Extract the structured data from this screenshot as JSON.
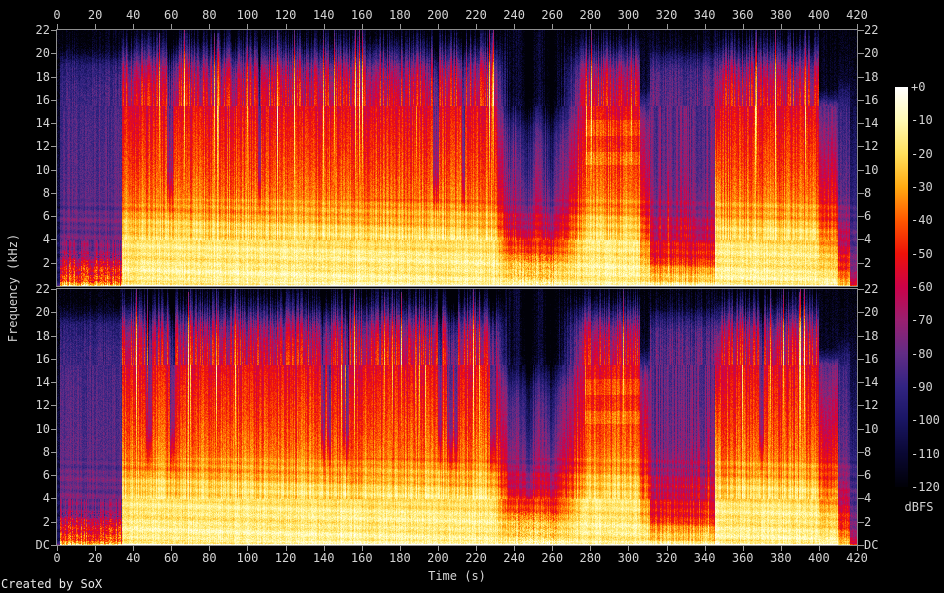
{
  "credit": "Created by SoX",
  "colors": {
    "background": "#000000",
    "axis": "#9a9a9a",
    "text": "#d4d4d4"
  },
  "axes": {
    "time": {
      "label": "Time (s)",
      "tick_labels": [
        "0",
        "20",
        "40",
        "60",
        "80",
        "100",
        "120",
        "140",
        "160",
        "180",
        "200",
        "220",
        "240",
        "260",
        "280",
        "300",
        "320",
        "340",
        "360",
        "380",
        "400",
        "420"
      ]
    },
    "frequency": {
      "label": "Frequency (kHz)",
      "tick_labels": [
        "22",
        "20",
        "18",
        "16",
        "14",
        "12",
        "10",
        "8",
        "6",
        "4",
        "2"
      ],
      "dc": "DC"
    },
    "colorbar": {
      "unit": "dBFS",
      "tick_labels": [
        "+0",
        "-10",
        "-20",
        "-30",
        "-40",
        "-50",
        "-60",
        "-70",
        "-80",
        "-90",
        "-100",
        "-110",
        "-120"
      ]
    }
  },
  "chart_data": {
    "type": "heatmap",
    "subtype": "audio-spectrogram",
    "generator": "SoX",
    "channels": [
      "channel-1-top",
      "channel-2-bottom"
    ],
    "x_axis": {
      "label": "Time (s)",
      "range_s": [
        0,
        420
      ],
      "tick_step_s": 20
    },
    "y_axis": {
      "label": "Frequency (kHz)",
      "range_khz": [
        0,
        22
      ],
      "tick_step_khz": 2,
      "dc_at_bottom": true
    },
    "z_axis": {
      "label": "dBFS",
      "range_db": [
        -120,
        0
      ],
      "tick_step_db": 10,
      "colorbar_position": "right"
    },
    "palette_stops": [
      {
        "db": -120,
        "rgb": [
          1,
          1,
          8
        ]
      },
      {
        "db": -110,
        "rgb": [
          10,
          8,
          52
        ]
      },
      {
        "db": -100,
        "rgb": [
          26,
          22,
          100
        ]
      },
      {
        "db": -90,
        "rgb": [
          50,
          36,
          130
        ]
      },
      {
        "db": -80,
        "rgb": [
          98,
          44,
          134
        ]
      },
      {
        "db": -70,
        "rgb": [
          154,
          32,
          112
        ]
      },
      {
        "db": -60,
        "rgb": [
          204,
          2,
          73
        ]
      },
      {
        "db": -50,
        "rgb": [
          238,
          18,
          10
        ]
      },
      {
        "db": -40,
        "rgb": [
          255,
          88,
          0
        ]
      },
      {
        "db": -30,
        "rgb": [
          255,
          170,
          18
        ]
      },
      {
        "db": -20,
        "rgb": [
          255,
          224,
          92
        ]
      },
      {
        "db": -10,
        "rgb": [
          255,
          250,
          180
        ]
      },
      {
        "db": 0,
        "rgb": [
          255,
          255,
          255
        ]
      }
    ],
    "profiles": {
      "silence": [
        [
          0,
          -100
        ],
        [
          22,
          -120
        ]
      ],
      "intro": [
        [
          0,
          -34
        ],
        [
          0.4,
          -38
        ],
        [
          1,
          -46
        ],
        [
          1.8,
          -56
        ],
        [
          2.6,
          -68
        ],
        [
          3.5,
          -76
        ],
        [
          6,
          -80
        ],
        [
          10,
          -83
        ],
        [
          14,
          -85
        ],
        [
          17,
          -88
        ],
        [
          19,
          -94
        ],
        [
          20,
          -110
        ],
        [
          20.8,
          -118
        ],
        [
          22,
          -120
        ]
      ],
      "loud": [
        [
          0,
          -14
        ],
        [
          0.2,
          -20
        ],
        [
          0.6,
          -14
        ],
        [
          1.5,
          -15
        ],
        [
          3,
          -17
        ],
        [
          4.5,
          -20
        ],
        [
          5.5,
          -26
        ],
        [
          6.5,
          -32
        ],
        [
          8,
          -38
        ],
        [
          10,
          -43
        ],
        [
          12,
          -47
        ],
        [
          14,
          -51
        ],
        [
          16,
          -56
        ],
        [
          17.5,
          -62
        ],
        [
          18.8,
          -72
        ],
        [
          19.8,
          -88
        ],
        [
          20.8,
          -105
        ],
        [
          21.6,
          -116
        ],
        [
          22,
          -118
        ]
      ],
      "breakdown": [
        [
          0,
          -16
        ],
        [
          0.8,
          -20
        ],
        [
          1.6,
          -26
        ],
        [
          2.4,
          -34
        ],
        [
          3.2,
          -44
        ],
        [
          4,
          -52
        ],
        [
          5,
          -60
        ],
        [
          6,
          -66
        ],
        [
          7,
          -72
        ],
        [
          8.5,
          -78
        ],
        [
          10,
          -83
        ],
        [
          12,
          -88
        ],
        [
          13.5,
          -95
        ],
        [
          14.5,
          -104
        ],
        [
          15.5,
          -113
        ],
        [
          16.5,
          -118
        ],
        [
          22,
          -120
        ]
      ],
      "break2": [
        [
          0,
          -16
        ],
        [
          1,
          -18
        ],
        [
          2,
          -24
        ],
        [
          3,
          -30
        ],
        [
          4,
          -36
        ],
        [
          5,
          -42
        ],
        [
          6,
          -48
        ],
        [
          8,
          -55
        ],
        [
          10,
          -60
        ],
        [
          12,
          -66
        ],
        [
          14,
          -72
        ],
        [
          15,
          -80
        ],
        [
          16,
          -95
        ],
        [
          17,
          -110
        ],
        [
          22,
          -120
        ]
      ],
      "purple": [
        [
          0,
          -18
        ],
        [
          0.5,
          -22
        ],
        [
          1,
          -28
        ],
        [
          1.6,
          -36
        ],
        [
          2.2,
          -46
        ],
        [
          3,
          -53
        ],
        [
          4,
          -57
        ],
        [
          5.5,
          -63
        ],
        [
          7,
          -70
        ],
        [
          9,
          -75
        ],
        [
          12,
          -78
        ],
        [
          15,
          -80
        ],
        [
          17,
          -82
        ],
        [
          18.5,
          -86
        ],
        [
          19.5,
          -96
        ],
        [
          20.5,
          -112
        ],
        [
          22,
          -120
        ]
      ],
      "burst": [
        [
          0,
          -12
        ],
        [
          2,
          -14
        ],
        [
          4,
          -18
        ],
        [
          6,
          -24
        ],
        [
          8,
          -30
        ],
        [
          10,
          -38
        ],
        [
          12,
          -46
        ],
        [
          14,
          -54
        ],
        [
          16,
          -62
        ],
        [
          18,
          -74
        ],
        [
          19.5,
          -90
        ],
        [
          21,
          -110
        ],
        [
          22,
          -118
        ]
      ],
      "outro1": [
        [
          0,
          -15
        ],
        [
          1,
          -18
        ],
        [
          2,
          -22
        ],
        [
          3,
          -28
        ],
        [
          4,
          -33
        ],
        [
          5,
          -40
        ],
        [
          6,
          -45
        ],
        [
          8,
          -53
        ],
        [
          10,
          -60
        ],
        [
          12,
          -67
        ],
        [
          14,
          -74
        ],
        [
          15.5,
          -80
        ],
        [
          16.2,
          -100
        ],
        [
          17,
          -115
        ],
        [
          22,
          -120
        ]
      ],
      "fadepurple": [
        [
          0,
          -30
        ],
        [
          1,
          -38
        ],
        [
          2,
          -48
        ],
        [
          3,
          -56
        ],
        [
          4,
          -62
        ],
        [
          6,
          -72
        ],
        [
          8,
          -80
        ],
        [
          12,
          -85
        ],
        [
          15,
          -89
        ],
        [
          16.5,
          -100
        ],
        [
          18,
          -114
        ],
        [
          22,
          -120
        ]
      ],
      "end": [
        [
          0,
          -60
        ],
        [
          2,
          -75
        ],
        [
          4,
          -84
        ],
        [
          8,
          -94
        ],
        [
          12,
          -101
        ],
        [
          16,
          -109
        ],
        [
          19,
          -116
        ],
        [
          22,
          -120
        ]
      ]
    },
    "segments": [
      {
        "t": [
          0,
          1.5
        ],
        "p": "silence"
      },
      {
        "t": [
          1.5,
          34
        ],
        "p": "intro",
        "sH": 6,
        "sM": 5,
        "sL": 12,
        "pixLow": 10
      },
      {
        "t": [
          34,
          229
        ],
        "p": "loud",
        "sH": 16,
        "sM": 8,
        "sL": 4,
        "tp": 0.05,
        "dp": 0.012
      },
      {
        "t": [
          229,
          238
        ],
        "p": "loud",
        "p2": "breakdown",
        "sH": 10,
        "sM": 8,
        "sL": 5
      },
      {
        "t": [
          238,
          262
        ],
        "p": "breakdown",
        "sH": 5,
        "sM": 9,
        "sL": 7,
        "wobble": [
          9,
          12
        ],
        "pixLow": 7
      },
      {
        "t": [
          262,
          277
        ],
        "p": "breakdown",
        "p2": "loud",
        "sH": 10,
        "sM": 9,
        "sL": 5
      },
      {
        "t": [
          277,
          306
        ],
        "p": "loud",
        "sH": 14,
        "sM": 8,
        "sL": 4,
        "tp": 0.05,
        "bands": true
      },
      {
        "t": [
          306,
          311
        ],
        "p": "break2",
        "sH": 6,
        "sM": 8,
        "sL": 5
      },
      {
        "t": [
          311,
          345
        ],
        "p": "purple",
        "sH": 9,
        "sM": 10,
        "sL": 8,
        "tp": 0.04,
        "tmode": "mid"
      },
      {
        "t": [
          345,
          348
        ],
        "p": "burst",
        "sH": 8,
        "sM": 6,
        "sL": 4
      },
      {
        "t": [
          348,
          400
        ],
        "p": "loud",
        "sH": 16,
        "sM": 8,
        "sL": 4,
        "tp": 0.06,
        "dp": 0.01
      },
      {
        "t": [
          400,
          410
        ],
        "p": "outro1",
        "sH": 5,
        "sM": 7,
        "sL": 4
      },
      {
        "t": [
          410,
          416
        ],
        "p": "fadepurple",
        "sH": 4,
        "sM": 5,
        "sL": 5
      },
      {
        "t": [
          416,
          420.01
        ],
        "p": "end",
        "sM": 3,
        "sL": 3
      }
    ]
  }
}
